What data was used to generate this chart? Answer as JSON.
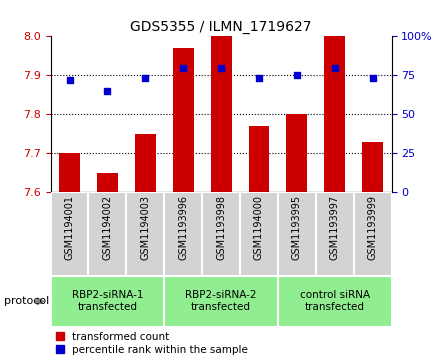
{
  "title": "GDS5355 / ILMN_1719627",
  "samples": [
    "GSM1194001",
    "GSM1194002",
    "GSM1194003",
    "GSM1193996",
    "GSM1193998",
    "GSM1194000",
    "GSM1193995",
    "GSM1193997",
    "GSM1193999"
  ],
  "bar_values": [
    7.7,
    7.65,
    7.75,
    7.97,
    8.0,
    7.77,
    7.8,
    8.0,
    7.73
  ],
  "dot_values": [
    72,
    65,
    73,
    80,
    80,
    73,
    75,
    80,
    73
  ],
  "bar_color": "#CC0000",
  "dot_color": "#0000CC",
  "ylim_left": [
    7.6,
    8.0
  ],
  "ylim_right": [
    0,
    100
  ],
  "yticks_left": [
    7.6,
    7.7,
    7.8,
    7.9,
    8.0
  ],
  "yticks_right": [
    0,
    25,
    50,
    75,
    100
  ],
  "groups": [
    {
      "label": "RBP2-siRNA-1\ntransfected",
      "start": 0,
      "end": 3
    },
    {
      "label": "RBP2-siRNA-2\ntransfected",
      "start": 3,
      "end": 6
    },
    {
      "label": "control siRNA\ntransfected",
      "start": 6,
      "end": 9
    }
  ],
  "protocol_label": "protocol",
  "legend_bar_label": "transformed count",
  "legend_dot_label": "percentile rank within the sample",
  "background_color": "#ffffff",
  "sample_bg_color": "#d3d3d3",
  "group_bg_color": "#90EE90",
  "group_border_color": "#ffffff",
  "sample_border_color": "#ffffff"
}
